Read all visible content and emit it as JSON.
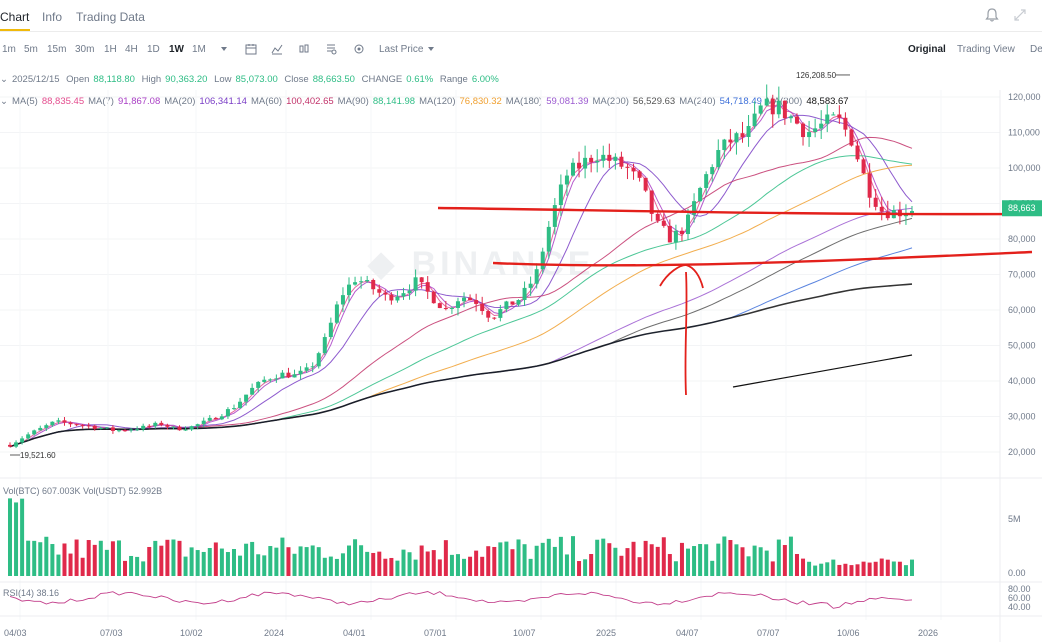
{
  "tabs": [
    {
      "label": "Chart"
    },
    {
      "label": "Info"
    },
    {
      "label": "Trading Data"
    }
  ],
  "toolbar": {
    "timeframes": [
      "1m",
      "5m",
      "15m",
      "30m",
      "1H",
      "4H",
      "1D",
      "1W",
      "1M"
    ],
    "active_timeframe": "1W",
    "price_type": "Last Price",
    "views": [
      "Original",
      "Trading View",
      "De"
    ],
    "active_view": "Original"
  },
  "ohlc": {
    "date": "2025/12/15",
    "open_label": "Open",
    "open": "88,118.80",
    "high_label": "High",
    "high": "90,363.20",
    "low_label": "Low",
    "low": "85,073.00",
    "close_label": "Close",
    "close": "88,663.50",
    "change_label": "CHANGE",
    "change": "0.61%",
    "range_label": "Range",
    "range": "6.00%"
  },
  "ma_legend": [
    {
      "label": "MA(5)",
      "value": "88,835.45",
      "color": "#e44b8d"
    },
    {
      "label": "MA(7)",
      "value": "91,867.08",
      "color": "#a93ec5"
    },
    {
      "label": "MA(20)",
      "value": "106,341.14",
      "color": "#7a3ec6"
    },
    {
      "label": "MA(60)",
      "value": "100,402.65",
      "color": "#c2336a"
    },
    {
      "label": "MA(90)",
      "value": "88,141.98",
      "color": "#2ebd85"
    },
    {
      "label": "MA(120)",
      "value": "76,830.32",
      "color": "#f0a030"
    },
    {
      "label": "MA(180)",
      "value": "59,081.39",
      "color": "#9b59d0"
    },
    {
      "label": "MA(200)",
      "value": "56,529.63",
      "color": "#555555"
    },
    {
      "label": "MA(240)",
      "value": "54,718.49",
      "color": "#3d6fd9"
    },
    {
      "label": "MA(300)",
      "value": "48,583.67",
      "color": "#111111"
    }
  ],
  "volume": {
    "label1": "Vol(BTC)",
    "value1": "607.003K",
    "label2": "Vol(USDT)",
    "value2": "52.992B",
    "axis": [
      "5M",
      "0.00"
    ]
  },
  "rsi": {
    "label": "RSI(14)",
    "value": "38.16",
    "axis": [
      "80.00",
      "60.00",
      "40.00"
    ]
  },
  "colors": {
    "up": "#2ebd85",
    "down": "#e0294a",
    "annotation": "#e3201b",
    "current_price": "#2ebd85"
  },
  "chart_data": {
    "type": "candlestick",
    "y_axis_ticks": [
      "120,000",
      "110,000",
      "100,000",
      "90,000",
      "80,000",
      "70,000",
      "60,000",
      "50,000",
      "40,000",
      "30,000",
      "20,000"
    ],
    "ylim": [
      15000,
      128000
    ],
    "x_axis_ticks": [
      "04/03",
      "07/03",
      "10/02",
      "2024",
      "04/01",
      "07/01",
      "10/07",
      "2025",
      "04/07",
      "07/07",
      "10/06",
      "2026"
    ],
    "current_price_label": "88,663",
    "high_marker": "126,208.50",
    "low_marker": "19,521.60",
    "price_path": [
      [
        0,
        22000
      ],
      [
        5,
        24500
      ],
      [
        10,
        26500
      ],
      [
        15,
        28500
      ],
      [
        20,
        28000
      ],
      [
        25,
        27500
      ],
      [
        30,
        26800
      ],
      [
        35,
        26000
      ],
      [
        40,
        26500
      ],
      [
        45,
        27000
      ],
      [
        50,
        28000
      ],
      [
        55,
        26500
      ],
      [
        60,
        27000
      ],
      [
        65,
        28500
      ],
      [
        70,
        30500
      ],
      [
        75,
        33000
      ],
      [
        80,
        37500
      ],
      [
        85,
        40500
      ],
      [
        90,
        42000
      ],
      [
        95,
        41500
      ],
      [
        100,
        43500
      ],
      [
        105,
        52000
      ],
      [
        110,
        64000
      ],
      [
        115,
        69000
      ],
      [
        120,
        66500
      ],
      [
        125,
        63500
      ],
      [
        130,
        65000
      ],
      [
        135,
        68000
      ],
      [
        140,
        64000
      ],
      [
        145,
        60000
      ],
      [
        150,
        64000
      ],
      [
        155,
        62500
      ],
      [
        160,
        58000
      ],
      [
        165,
        61000
      ],
      [
        170,
        63500
      ],
      [
        175,
        70000
      ],
      [
        180,
        86000
      ],
      [
        185,
        98000
      ],
      [
        190,
        101000
      ],
      [
        195,
        104000
      ],
      [
        200,
        102000
      ],
      [
        205,
        100000
      ],
      [
        210,
        95000
      ],
      [
        215,
        84000
      ],
      [
        220,
        80000
      ],
      [
        225,
        84000
      ],
      [
        230,
        95000
      ],
      [
        235,
        104000
      ],
      [
        240,
        108000
      ],
      [
        245,
        109000
      ],
      [
        250,
        117000
      ],
      [
        255,
        117500
      ],
      [
        260,
        114000
      ],
      [
        265,
        110000
      ],
      [
        270,
        112000
      ],
      [
        275,
        114000
      ],
      [
        280,
        108000
      ],
      [
        285,
        95000
      ],
      [
        290,
        88000
      ],
      [
        295,
        87500
      ],
      [
        300,
        88600
      ]
    ]
  }
}
